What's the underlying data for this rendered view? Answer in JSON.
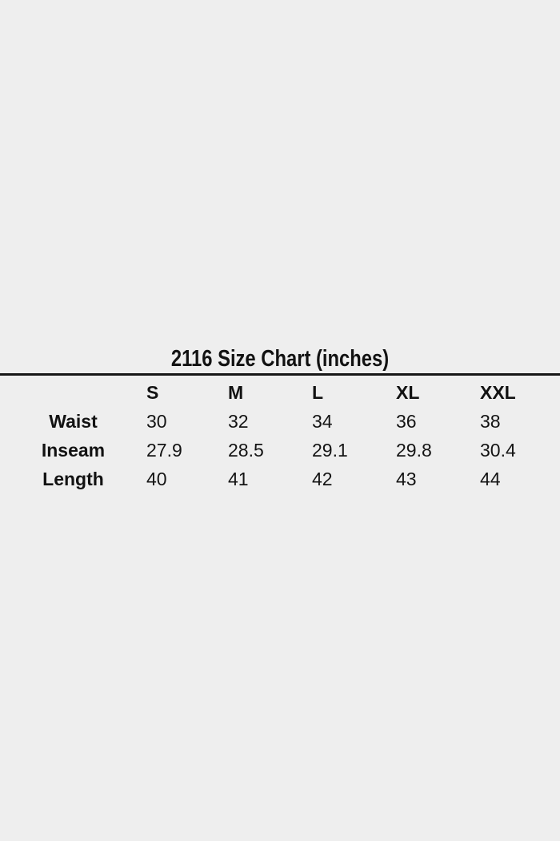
{
  "page": {
    "background_color": "#eeeeee",
    "text_color": "#141414",
    "divider_color": "#161616"
  },
  "title": "2116 Size Chart (inches)",
  "table": {
    "columns": [
      "S",
      "M",
      "L",
      "XL",
      "XXL"
    ],
    "rows": [
      {
        "label": "Waist",
        "values": [
          "30",
          "32",
          "34",
          "36",
          "38"
        ]
      },
      {
        "label": "Inseam",
        "values": [
          "27.9",
          "28.5",
          "29.1",
          "29.8",
          "30.4"
        ]
      },
      {
        "label": "Length",
        "values": [
          "40",
          "41",
          "42",
          "43",
          "44"
        ]
      }
    ]
  },
  "chart_data": {
    "type": "table",
    "title": "2116 Size Chart (inches)",
    "units": "inches",
    "columns": [
      "",
      "S",
      "M",
      "L",
      "XL",
      "XXL"
    ],
    "rows": [
      [
        "Waist",
        30,
        32,
        34,
        36,
        38
      ],
      [
        "Inseam",
        27.9,
        28.5,
        29.1,
        29.8,
        30.4
      ],
      [
        "Length",
        40,
        41,
        42,
        43,
        44
      ]
    ]
  }
}
